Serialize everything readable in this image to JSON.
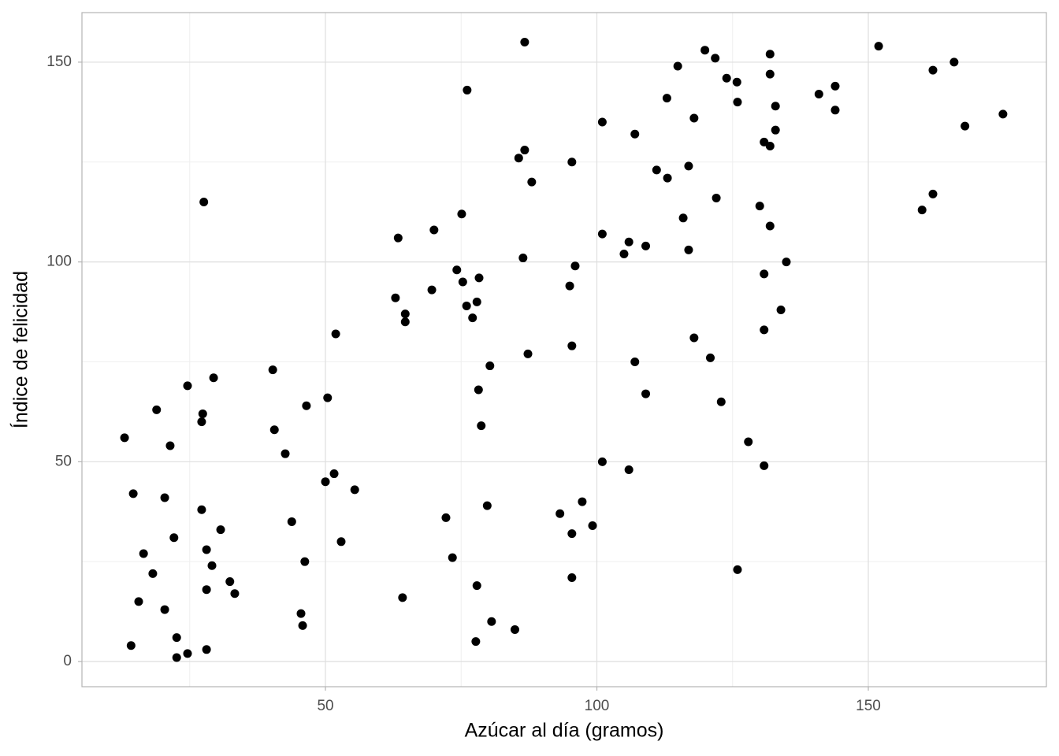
{
  "chart_data": {
    "type": "scatter",
    "x_label": "Azúcar al día (gramos)",
    "y_label": "Índice de felicidad",
    "x": [
      13.0,
      14.2,
      14.6,
      15.6,
      16.5,
      18.2,
      18.9,
      20.4,
      20.4,
      21.4,
      22.1,
      22.6,
      22.6,
      24.6,
      24.6,
      27.4,
      27.2,
      27.2,
      27.6,
      28.1,
      28.1,
      28.1,
      29.1,
      29.4,
      30.7,
      32.4,
      33.3,
      40.3,
      40.6,
      42.6,
      43.8,
      45.5,
      45.8,
      46.2,
      46.5,
      50.0,
      50.4,
      51.6,
      51.9,
      52.9,
      55.4,
      62.9,
      63.4,
      64.2,
      64.7,
      64.7,
      69.6,
      70.0,
      72.2,
      73.4,
      74.2,
      75.1,
      75.3,
      76.0,
      76.1,
      77.1,
      77.7,
      77.9,
      77.9,
      78.2,
      78.3,
      78.7,
      79.8,
      80.3,
      80.6,
      84.9,
      85.6,
      86.4,
      86.7,
      86.7,
      87.3,
      88.0,
      93.2,
      95.0,
      95.4,
      95.4,
      95.4,
      95.4,
      96.0,
      97.3,
      99.2,
      101.0,
      101.0,
      101.0,
      105.0,
      105.9,
      105.9,
      107.0,
      107.0,
      109.0,
      109.0,
      111.0,
      112.9,
      113.0,
      114.9,
      115.9,
      116.9,
      116.9,
      117.9,
      117.9,
      119.9,
      120.9,
      121.8,
      122.0,
      122.9,
      123.9,
      125.8,
      125.9,
      125.9,
      127.9,
      130.0,
      130.8,
      130.8,
      130.8,
      130.8,
      131.9,
      131.9,
      131.9,
      131.9,
      132.9,
      132.9,
      133.9,
      134.9,
      140.9,
      143.9,
      143.9,
      151.9,
      159.9,
      161.9,
      161.9,
      165.8,
      167.8,
      174.8
    ],
    "values": [
      56,
      4,
      42,
      15,
      27,
      22,
      63,
      41,
      13,
      54,
      31,
      6,
      1,
      69,
      2,
      62,
      60,
      38,
      115,
      28,
      18,
      3,
      24,
      71,
      33,
      20,
      17,
      73,
      58,
      52,
      35,
      12,
      9,
      25,
      64,
      45,
      66,
      47,
      82,
      30,
      43,
      91,
      106,
      16,
      87,
      85,
      93,
      108,
      36,
      26,
      98,
      112,
      95,
      89,
      143,
      86,
      5,
      90,
      19,
      68,
      96,
      59,
      39,
      74,
      10,
      8,
      126,
      101,
      128,
      155,
      77,
      120,
      37,
      94,
      79,
      125,
      21,
      32,
      99,
      40,
      34,
      50,
      135,
      107,
      102,
      105,
      48,
      75,
      132,
      104,
      67,
      123,
      141,
      121,
      149,
      111,
      124,
      103,
      136,
      81,
      153,
      76,
      151,
      116,
      65,
      146,
      145,
      140,
      23,
      55,
      114,
      130,
      97,
      83,
      49,
      152,
      147,
      129,
      109,
      139,
      133,
      88,
      100,
      142,
      144,
      138,
      154,
      113,
      148,
      117,
      150,
      134,
      137
    ],
    "color": "#000000",
    "xlim": [
      5.15,
      182.8
    ],
    "ylim": [
      -6.3,
      162.4
    ],
    "xticks": [
      50,
      100,
      150
    ],
    "yticks": [
      0,
      50,
      100,
      150
    ],
    "x_minor_breaks": [
      25,
      75,
      125
    ],
    "y_minor_breaks": [
      25,
      75,
      125
    ],
    "grid": true
  }
}
